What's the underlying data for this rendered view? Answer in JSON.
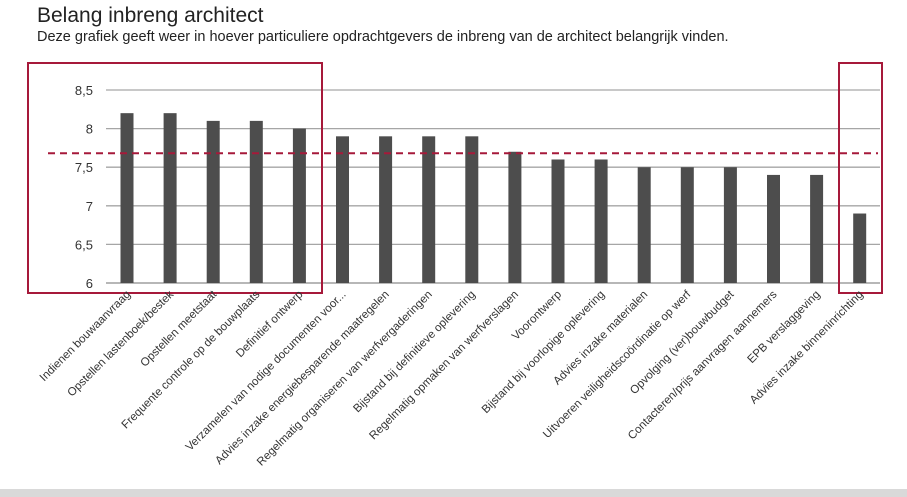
{
  "chart_data": {
    "type": "bar",
    "title": "Belang inbreng architect",
    "subtitle": "Deze grafiek geeft weer in hoever particuliere opdrachtgevers de inbreng van de architect belangrijk vinden.",
    "xlabel": "",
    "ylabel": "",
    "ylim": [
      6,
      8.5
    ],
    "yticks": [
      "6",
      "6,5",
      "7",
      "7,5",
      "8",
      "8,5"
    ],
    "ytick_values": [
      6,
      6.5,
      7,
      7.5,
      8,
      8.5
    ],
    "grid": true,
    "categories": [
      "Indienen bouwaanvraag",
      "Opstellen lastenboek/bestek",
      "Opstellen meetstaat",
      "Frequente controle op de bouwplaats",
      "Definitief ontwerp",
      "Verzamelen van nodige documenten voor...",
      "Advies inzake energiebesparende maatregelen",
      "Regelmatig organiseren van werfvergaderingen",
      "Bijstand bij definitieve oplevering",
      "Regelmatig  opmaken van werfverslagen",
      "Voorontwerp",
      "Bijstand bij voorlopige oplevering",
      "Advies inzake materialen",
      "Uitvoeren veiligheidscoördinatie op werf",
      "Opvolging (ver)bouwbudget",
      "Contacteren/prijs aanvragen aannemers",
      "EPB verslaggeving",
      "Advies inzake binneninrichting"
    ],
    "values": [
      8.2,
      8.2,
      8.1,
      8.1,
      8.0,
      7.9,
      7.9,
      7.9,
      7.9,
      7.7,
      7.6,
      7.6,
      7.5,
      7.5,
      7.5,
      7.4,
      7.4,
      6.9
    ],
    "average_line": 7.68,
    "highlight_groups": [
      [
        0,
        4
      ],
      [
        17,
        17
      ]
    ],
    "colors": {
      "bar": "#4d4d4d",
      "grid": "#a6a6a6",
      "highlight": "#a6193a",
      "text": "#333333"
    }
  }
}
